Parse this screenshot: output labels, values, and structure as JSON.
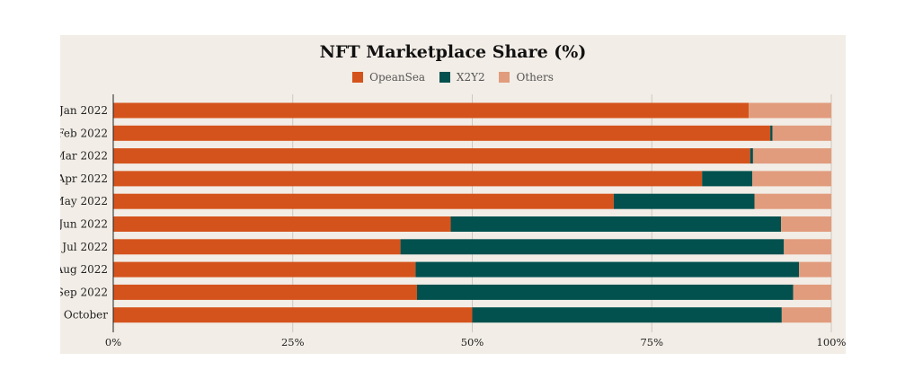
{
  "chart_data": {
    "type": "bar",
    "orientation": "horizontal",
    "stacked": true,
    "title": "NFT Marketplace Share (%)",
    "categories": [
      "Jan 2022",
      "Feb 2022",
      "Mar 2022",
      "Apr 2022",
      "May 2022",
      "Jun 2022",
      "Jul 2022",
      "Aug 2022",
      "Sep 2022",
      "October"
    ],
    "series": [
      {
        "name": "OpeanSea",
        "color": "#d4531c",
        "values": [
          88.5,
          91.5,
          88.7,
          82.0,
          69.7,
          47.0,
          40.0,
          42.1,
          42.3,
          50.0
        ]
      },
      {
        "name": "X2Y2",
        "color": "#02514f",
        "values": [
          0.0,
          0.3,
          0.4,
          7.0,
          19.6,
          46.0,
          53.4,
          53.4,
          52.4,
          43.1
        ]
      },
      {
        "name": "Others",
        "color": "#e19c7d",
        "values": [
          11.5,
          8.2,
          10.9,
          11.0,
          10.7,
          7.0,
          6.6,
          4.5,
          5.3,
          6.9
        ]
      }
    ],
    "xlim": [
      0,
      100
    ],
    "xticks": [
      0,
      25,
      50,
      75,
      100
    ],
    "xtick_labels": [
      "0%",
      "25%",
      "50%",
      "75%",
      "100%"
    ],
    "xlabel": "",
    "ylabel": "",
    "grid": true,
    "legend_position": "top-center"
  }
}
